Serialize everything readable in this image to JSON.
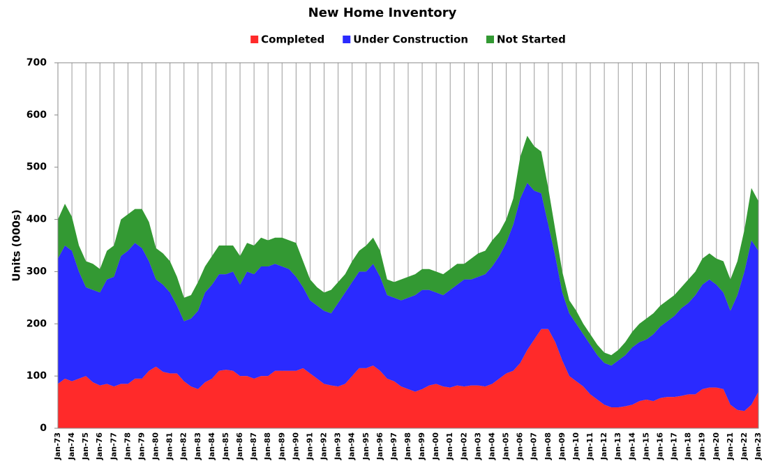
{
  "chart_data": {
    "type": "stacked_area",
    "title": "New Home Inventory",
    "y_label": "Units (000s)",
    "legend": "top",
    "xgrid": true,
    "categories": [
      "Jan-73",
      null,
      "Jan-74",
      null,
      "Jan-75",
      null,
      "Jan-76",
      null,
      "Jan-77",
      null,
      "Jan-78",
      null,
      "Jan-79",
      null,
      "Jan-80",
      null,
      "Jan-81",
      null,
      "Jan-82",
      null,
      "Jan-83",
      null,
      "Jan-84",
      null,
      "Jan-85",
      null,
      "Jan-86",
      null,
      "Jan-87",
      null,
      "Jan-88",
      null,
      "Jan-89",
      null,
      "Jan-90",
      null,
      "Jan-91",
      null,
      "Jan-92",
      null,
      "Jan-93",
      null,
      "Jan-94",
      null,
      "Jan-95",
      null,
      "Jan-96",
      null,
      "Jan-97",
      null,
      "Jan-98",
      null,
      "Jan-99",
      null,
      "Jan-00",
      null,
      "Jan-01",
      null,
      "Jan-02",
      null,
      "Jan-03",
      null,
      "Jan-04",
      null,
      "Jan-05",
      null,
      "Jan-06",
      null,
      "Jan-07",
      null,
      "Jan-08",
      null,
      "Jan-09",
      null,
      "Jan-10",
      null,
      "Jan-11",
      null,
      "Jan-12",
      null,
      "Jan-13",
      null,
      "Jan-14",
      null,
      "Jan-15",
      null,
      "Jan-16",
      null,
      "Jan-17",
      null,
      "Jan-18",
      null,
      "Jan-19",
      null,
      "Jan-20",
      null,
      "Jan-21",
      null,
      "Jan-22",
      null,
      "Jan-23"
    ],
    "series": [
      {
        "name": "Completed",
        "color": "#ff2a2a",
        "values": [
          85,
          95,
          90,
          95,
          100,
          88,
          82,
          85,
          80,
          85,
          85,
          95,
          95,
          110,
          118,
          108,
          105,
          105,
          90,
          80,
          75,
          88,
          95,
          110,
          112,
          110,
          100,
          100,
          95,
          100,
          100,
          110,
          110,
          110,
          110,
          115,
          105,
          95,
          85,
          82,
          80,
          85,
          100,
          115,
          115,
          120,
          110,
          95,
          90,
          80,
          75,
          70,
          75,
          82,
          85,
          80,
          78,
          82,
          80,
          82,
          82,
          80,
          85,
          95,
          105,
          110,
          125,
          150,
          170,
          190,
          190,
          165,
          130,
          100,
          90,
          80,
          65,
          55,
          45,
          40,
          40,
          42,
          45,
          52,
          55,
          52,
          58,
          60,
          60,
          62,
          65,
          65,
          75,
          78,
          78,
          75,
          45,
          35,
          33,
          45,
          70
        ]
      },
      {
        "name": "Under Construction",
        "color": "#2a2aff",
        "values": [
          240,
          255,
          250,
          205,
          170,
          177,
          178,
          200,
          210,
          245,
          255,
          260,
          250,
          210,
          167,
          167,
          155,
          130,
          115,
          130,
          150,
          172,
          180,
          185,
          183,
          190,
          175,
          200,
          200,
          210,
          210,
          205,
          200,
          195,
          180,
          155,
          140,
          140,
          140,
          138,
          160,
          175,
          180,
          185,
          185,
          195,
          180,
          160,
          160,
          165,
          175,
          185,
          190,
          183,
          175,
          175,
          187,
          193,
          205,
          203,
          208,
          215,
          225,
          235,
          250,
          280,
          315,
          320,
          285,
          260,
          200,
          165,
          130,
          120,
          110,
          100,
          95,
          85,
          80,
          80,
          90,
          98,
          110,
          113,
          115,
          128,
          137,
          145,
          155,
          168,
          175,
          190,
          200,
          207,
          197,
          185,
          180,
          220,
          267,
          315,
          270
        ]
      },
      {
        "name": "Not Started",
        "color": "#339933",
        "values": [
          75,
          80,
          65,
          50,
          50,
          50,
          45,
          55,
          60,
          70,
          70,
          65,
          75,
          75,
          60,
          60,
          60,
          55,
          45,
          45,
          55,
          50,
          55,
          55,
          55,
          50,
          55,
          55,
          55,
          55,
          50,
          50,
          55,
          55,
          65,
          50,
          40,
          35,
          35,
          45,
          40,
          35,
          40,
          40,
          50,
          50,
          50,
          30,
          30,
          40,
          40,
          40,
          40,
          40,
          40,
          40,
          40,
          40,
          30,
          40,
          45,
          45,
          50,
          45,
          45,
          50,
          80,
          90,
          85,
          80,
          70,
          50,
          40,
          25,
          25,
          20,
          20,
          20,
          20,
          20,
          20,
          25,
          30,
          35,
          40,
          40,
          40,
          40,
          40,
          40,
          45,
          45,
          50,
          50,
          50,
          60,
          60,
          65,
          80,
          100,
          95
        ]
      }
    ],
    "ylim": [
      0,
      700
    ],
    "yticks": [
      0,
      100,
      200,
      300,
      400,
      500,
      600,
      700
    ]
  }
}
